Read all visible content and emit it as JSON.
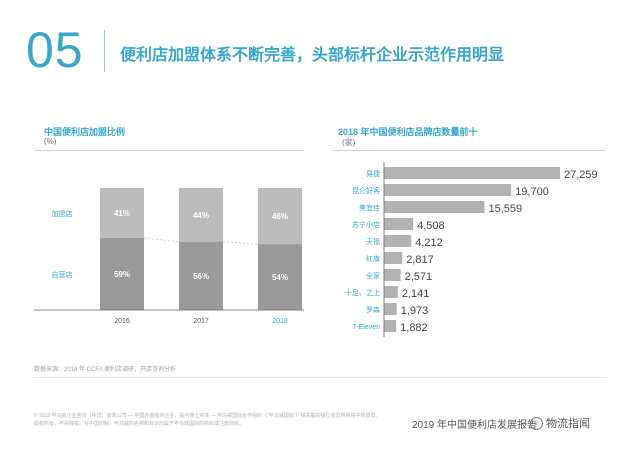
{
  "header": {
    "number": "05",
    "title": "便利店加盟体系不断完善，头部标杆企业示范作用明显"
  },
  "colors": {
    "accent": "#3aa7c9",
    "franchise_bar": "#bcbcbc",
    "owned_bar": "#9a9a9a"
  },
  "chart_data": [
    {
      "type": "bar",
      "stacked": true,
      "title": "中国便利店加盟比例",
      "unit": "(%)",
      "categories": [
        "2016",
        "2017",
        "2018"
      ],
      "series": [
        {
          "name": "加盟店",
          "values": [
            41,
            44,
            46
          ],
          "labels": [
            "41%",
            "44%",
            "46%"
          ]
        },
        {
          "name": "自营店",
          "values": [
            59,
            56,
            54
          ],
          "labels": [
            "59%",
            "56%",
            "54%"
          ]
        }
      ],
      "ylim": [
        0,
        100
      ],
      "grid": false
    },
    {
      "type": "bar",
      "orientation": "horizontal",
      "title": "2018 年中国便利店品牌店数量前十",
      "unit": "(家)",
      "categories": [
        "易捷",
        "昆仑好客",
        "美宜佳",
        "苏宁小店",
        "天福",
        "红旗",
        "全家",
        "十足、之上",
        "罗森",
        "7-Eleven"
      ],
      "values": [
        27259,
        19700,
        15559,
        4508,
        4212,
        2817,
        2571,
        2141,
        1973,
        1882
      ],
      "value_labels": [
        "27,259",
        "19,700",
        "15,559",
        "4,508",
        "4,212",
        "2,817",
        "2,571",
        "2,141",
        "1,973",
        "1,882"
      ],
      "xlim": [
        0,
        27259
      ],
      "grid": false
    }
  ],
  "source": "数据来源：2018 年 CCFA 便利店调研，开店咨询分析",
  "copyright": "© 2019 毕马威企业咨询（中国）有限公司 — 中国外商独资企业，是与瑞士实体 — 毕马威国际合作组织（“毕马威国际”）相关联的独立成员所网络中的成员。版权所有，不得转载。在中国印制。毕马威的名称和标识均属于毕马威国际的商标或注册商标。",
  "footer": {
    "title": "2019 年中国便利店发展报告",
    "watermark": "物流指闻"
  }
}
